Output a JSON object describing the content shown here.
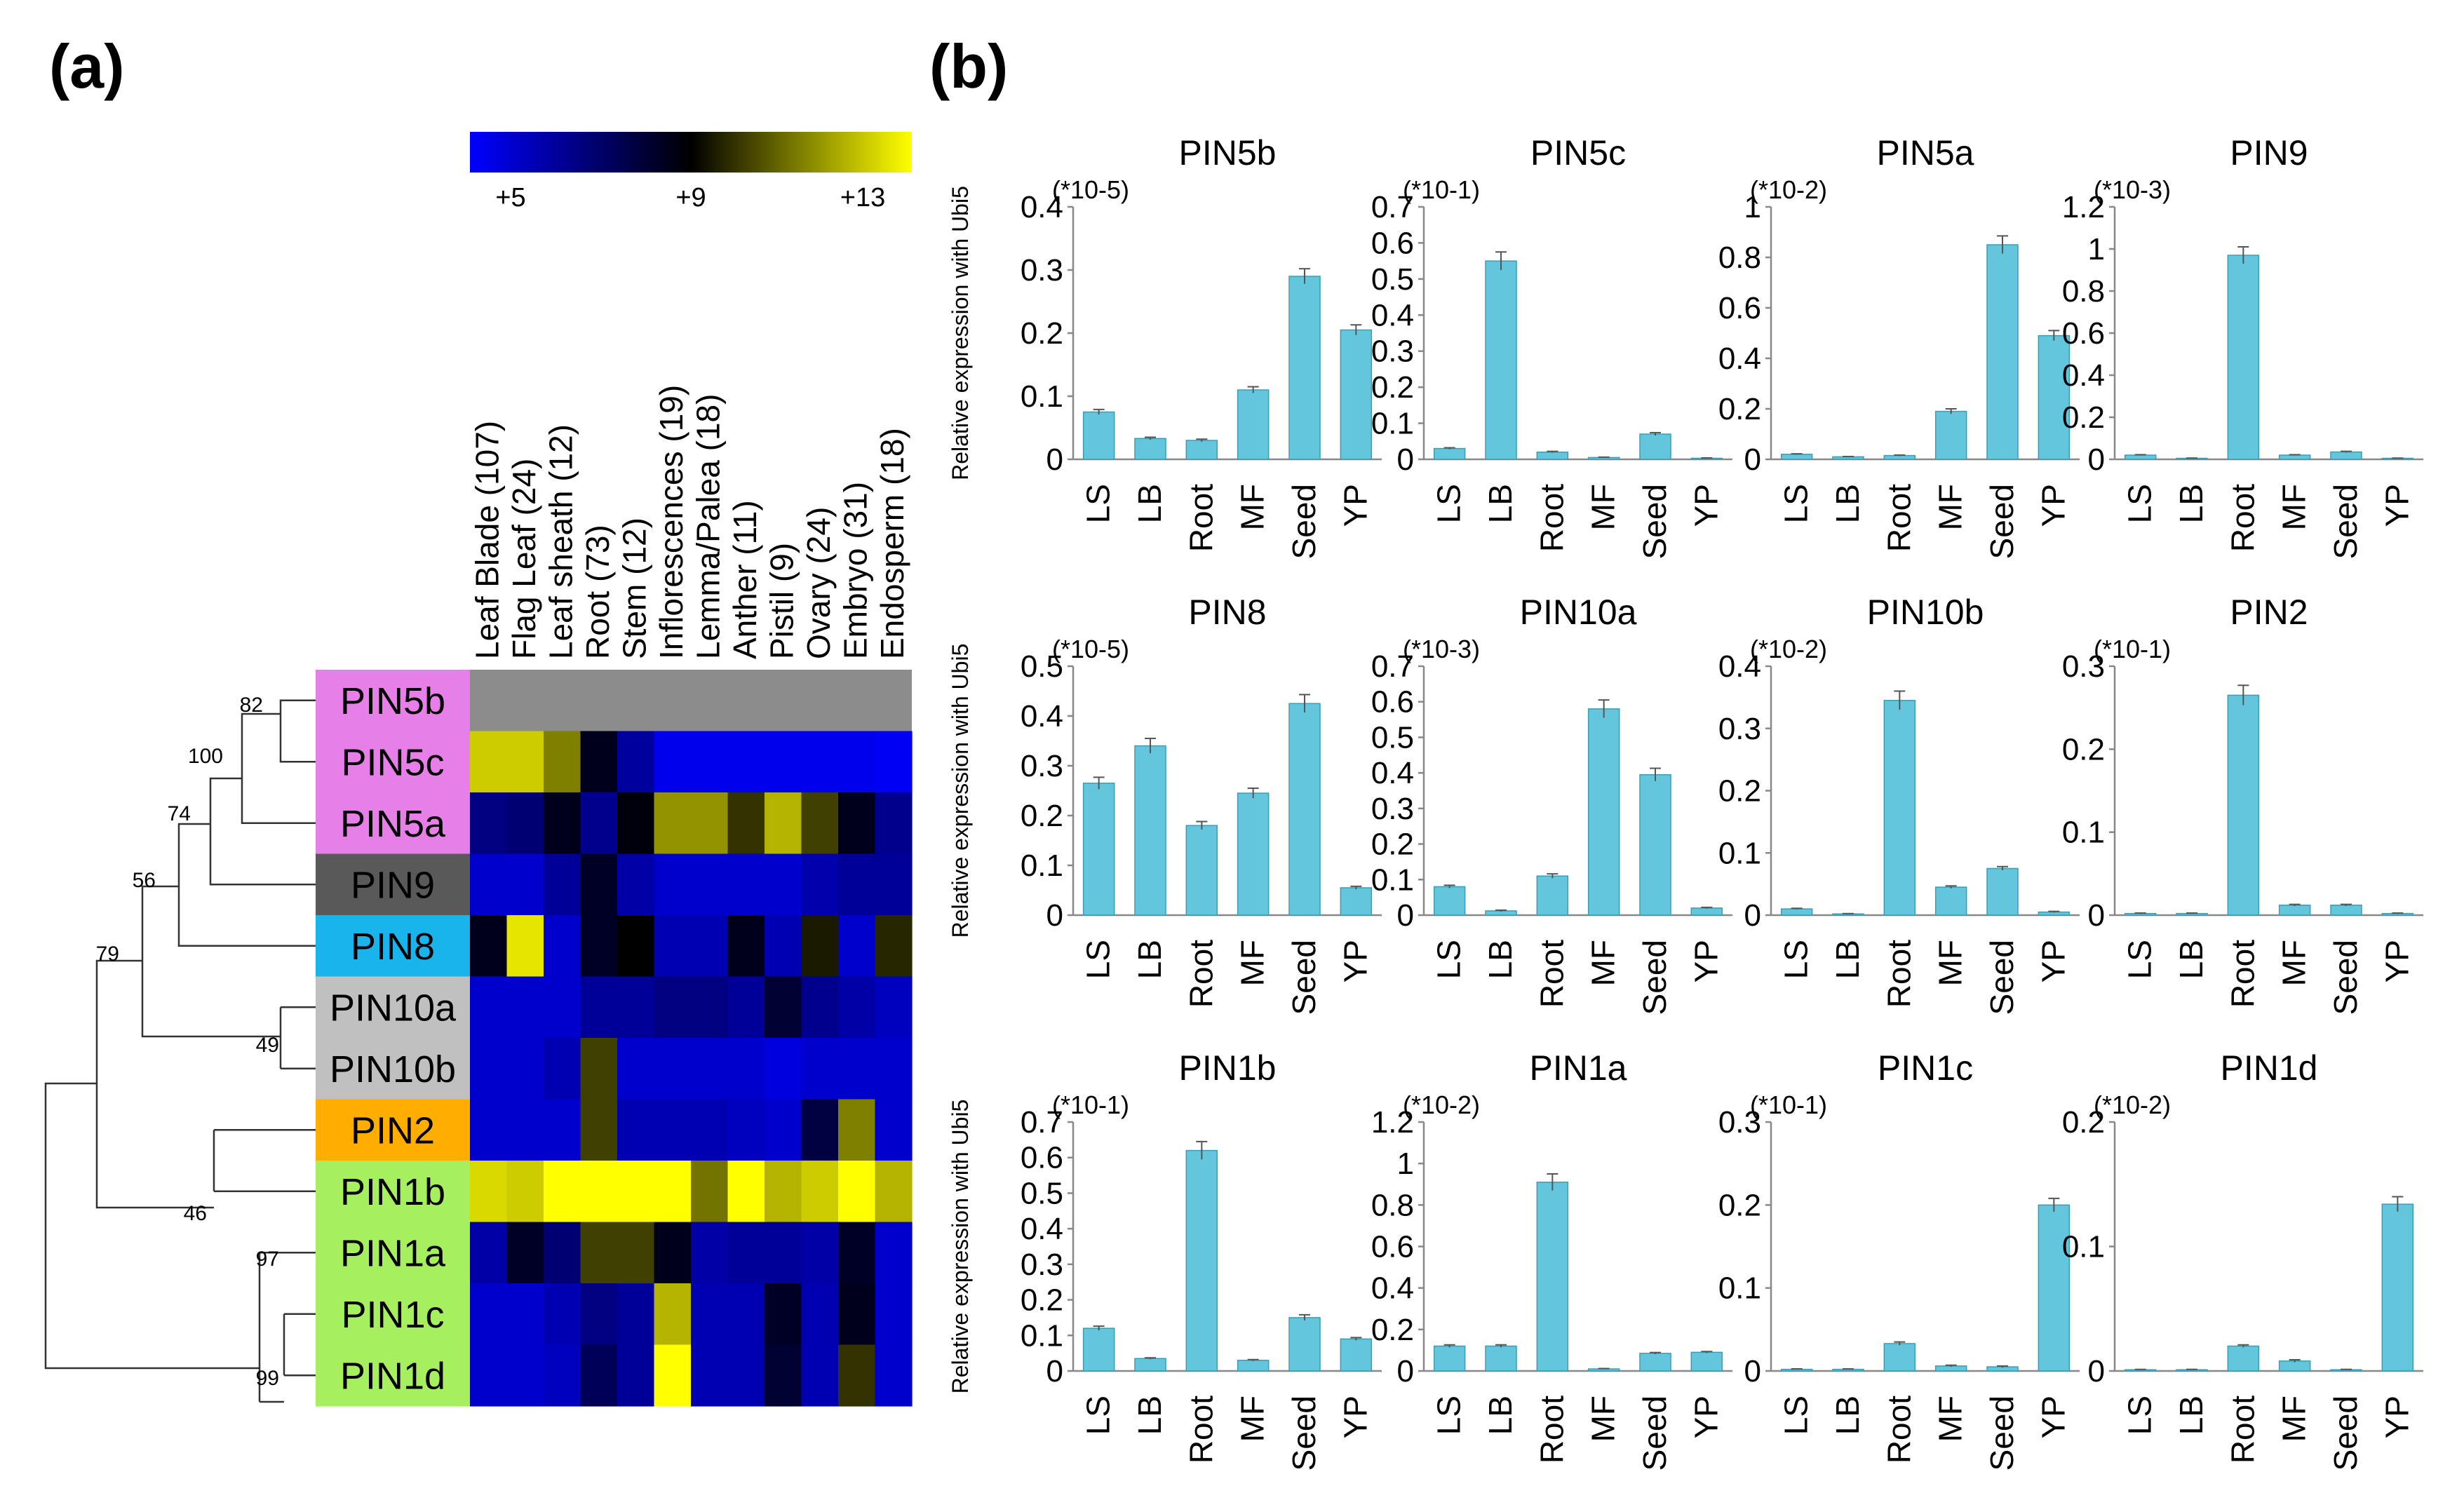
{
  "panel_a": {
    "label": "(a)",
    "colorbar": {
      "tick_labels": [
        "+5",
        "+9",
        "+13"
      ]
    }
  },
  "panel_b": {
    "label": "(b)",
    "ylabel": "Relative expression with Ubi5"
  },
  "chart_data": [
    {
      "type": "heatmap",
      "panel": "a",
      "title": "",
      "colorscale": {
        "min": 5,
        "mid": 9,
        "max": 13,
        "low_color": "#0000ff",
        "mid_color": "#000000",
        "high_color": "#ffff00",
        "missing_color": "#8c8c8c"
      },
      "columns": [
        "Leaf Blade (107)",
        "Flag Leaf (24)",
        "Leaf sheath (12)",
        "Root (73)",
        "Stem (12)",
        "Inflorescences (19)",
        "Lemma/Palea (18)",
        "Anther (11)",
        "Pistil (9)",
        "Ovary (24)",
        "Embryo (31)",
        "Endosperm (18)"
      ],
      "rows": [
        "PIN5b",
        "PIN5c",
        "PIN5a",
        "PIN9",
        "PIN8",
        "PIN10a",
        "PIN10b",
        "PIN2",
        "PIN1b",
        "PIN1a",
        "PIN1c",
        "PIN1d"
      ],
      "row_colors": [
        "#e77fe8",
        "#e77fe8",
        "#e77fe8",
        "#595959",
        "#1ab4ec",
        "#c0c0c0",
        "#c0c0c0",
        "#ffae00",
        "#a6f060",
        "#a6f060",
        "#a6f060",
        "#a6f060"
      ],
      "values": [
        [
          null,
          null,
          null,
          null,
          null,
          null,
          null,
          null,
          null,
          null,
          null,
          null
        ],
        [
          12.2,
          12.2,
          11.0,
          8.6,
          6.5,
          5.3,
          5.3,
          5.3,
          5.3,
          5.3,
          5.3,
          5.2
        ],
        [
          7.0,
          7.2,
          8.6,
          6.8,
          8.8,
          11.3,
          11.3,
          9.8,
          11.8,
          10.0,
          8.6,
          6.8
        ],
        [
          5.8,
          5.8,
          6.6,
          8.4,
          6.4,
          5.8,
          5.8,
          5.8,
          5.8,
          6.3,
          6.6,
          6.6
        ],
        [
          8.6,
          12.6,
          5.8,
          8.4,
          9.0,
          6.2,
          6.2,
          8.6,
          6.2,
          9.4,
          5.8,
          9.6
        ],
        [
          5.8,
          5.8,
          5.8,
          6.6,
          6.6,
          7.0,
          7.0,
          6.6,
          8.2,
          6.8,
          6.4,
          6.0
        ],
        [
          5.8,
          5.8,
          6.2,
          10.0,
          5.8,
          5.8,
          5.8,
          5.8,
          5.5,
          5.8,
          5.8,
          5.8
        ],
        [
          5.8,
          5.8,
          5.8,
          10.0,
          6.2,
          6.2,
          6.2,
          6.0,
          5.8,
          8.0,
          11.0,
          5.8
        ],
        [
          12.4,
          12.2,
          13.0,
          13.0,
          13.0,
          13.0,
          10.8,
          13.0,
          11.8,
          12.2,
          13.0,
          11.8
        ],
        [
          6.4,
          8.4,
          7.2,
          10.0,
          10.0,
          8.6,
          6.4,
          6.6,
          6.6,
          6.4,
          8.4,
          5.8
        ],
        [
          5.8,
          5.8,
          6.2,
          7.0,
          6.6,
          11.8,
          6.2,
          6.2,
          8.4,
          6.2,
          8.6,
          5.8
        ],
        [
          5.8,
          5.8,
          6.0,
          7.6,
          6.6,
          13.0,
          6.2,
          6.2,
          8.2,
          6.2,
          9.8,
          5.8
        ]
      ],
      "dendrogram_bootstrap": [
        "82",
        "100",
        "74",
        "56",
        "79",
        "49",
        "46",
        "97",
        "99"
      ]
    },
    {
      "type": "bar",
      "panel": "b",
      "title": "PIN5b",
      "multiplier": "(*10-5)",
      "categories": [
        "LS",
        "LB",
        "Root",
        "MF",
        "Seed",
        "YP"
      ],
      "values": [
        0.075,
        0.033,
        0.03,
        0.11,
        0.29,
        0.205
      ],
      "errors": [
        0.004,
        0.002,
        0.002,
        0.005,
        0.012,
        0.008
      ],
      "ylim": [
        0,
        0.4
      ],
      "yticks": [
        "0",
        "0.1",
        "0.2",
        "0.3",
        "0.4"
      ]
    },
    {
      "type": "bar",
      "panel": "b",
      "title": "PIN5c",
      "multiplier": "(*10-1)",
      "categories": [
        "LS",
        "LB",
        "Root",
        "MF",
        "Seed",
        "YP"
      ],
      "values": [
        0.03,
        0.55,
        0.02,
        0.005,
        0.07,
        0.003
      ],
      "errors": [
        0.002,
        0.025,
        0.002,
        0.001,
        0.004,
        0.001
      ],
      "ylim": [
        0,
        0.7
      ],
      "yticks": [
        "0",
        "0.1",
        "0.2",
        "0.3",
        "0.4",
        "0.5",
        "0.6",
        "0.7"
      ]
    },
    {
      "type": "bar",
      "panel": "b",
      "title": "PIN5a",
      "multiplier": "(*10-2)",
      "categories": [
        "LS",
        "LB",
        "Root",
        "MF",
        "Seed",
        "YP"
      ],
      "values": [
        0.02,
        0.01,
        0.015,
        0.19,
        0.85,
        0.49
      ],
      "errors": [
        0.002,
        0.001,
        0.002,
        0.01,
        0.035,
        0.02
      ],
      "ylim": [
        0,
        1
      ],
      "yticks": [
        "0",
        "0.2",
        "0.4",
        "0.6",
        "0.8",
        "1"
      ]
    },
    {
      "type": "bar",
      "panel": "b",
      "title": "PIN9",
      "multiplier": "(*10-3)",
      "categories": [
        "LS",
        "LB",
        "Root",
        "MF",
        "Seed",
        "YP"
      ],
      "values": [
        0.02,
        0.005,
        0.97,
        0.02,
        0.035,
        0.005
      ],
      "errors": [
        0.002,
        0.001,
        0.04,
        0.002,
        0.003,
        0.001
      ],
      "ylim": [
        0,
        1.2
      ],
      "yticks": [
        "0",
        "0.2",
        "0.4",
        "0.6",
        "0.8",
        "1",
        "1.2"
      ]
    },
    {
      "type": "bar",
      "panel": "b",
      "title": "PIN8",
      "multiplier": "(*10-5)",
      "categories": [
        "LS",
        "LB",
        "Root",
        "MF",
        "Seed",
        "YP"
      ],
      "values": [
        0.265,
        0.34,
        0.18,
        0.245,
        0.425,
        0.055
      ],
      "errors": [
        0.012,
        0.015,
        0.008,
        0.01,
        0.018,
        0.003
      ],
      "ylim": [
        0,
        0.5
      ],
      "yticks": [
        "0",
        "0.1",
        "0.2",
        "0.3",
        "0.4",
        "0.5"
      ]
    },
    {
      "type": "bar",
      "panel": "b",
      "title": "PIN10a",
      "multiplier": "(*10-3)",
      "categories": [
        "LS",
        "LB",
        "Root",
        "MF",
        "Seed",
        "YP"
      ],
      "values": [
        0.08,
        0.012,
        0.11,
        0.58,
        0.395,
        0.02
      ],
      "errors": [
        0.004,
        0.002,
        0.006,
        0.025,
        0.018,
        0.002
      ],
      "ylim": [
        0,
        0.7
      ],
      "yticks": [
        "0",
        "0.1",
        "0.2",
        "0.3",
        "0.4",
        "0.5",
        "0.6",
        "0.7"
      ]
    },
    {
      "type": "bar",
      "panel": "b",
      "title": "PIN10b",
      "multiplier": "(*10-2)",
      "categories": [
        "LS",
        "LB",
        "Root",
        "MF",
        "Seed",
        "YP"
      ],
      "values": [
        0.01,
        0.002,
        0.345,
        0.045,
        0.075,
        0.005
      ],
      "errors": [
        0.001,
        0.0005,
        0.015,
        0.002,
        0.003,
        0.001
      ],
      "ylim": [
        0,
        0.4
      ],
      "yticks": [
        "0",
        "0.1",
        "0.2",
        "0.3",
        "0.4"
      ]
    },
    {
      "type": "bar",
      "panel": "b",
      "title": "PIN2",
      "multiplier": "(*10-1)",
      "categories": [
        "LS",
        "LB",
        "Root",
        "MF",
        "Seed",
        "YP"
      ],
      "values": [
        0.002,
        0.002,
        0.265,
        0.012,
        0.012,
        0.002
      ],
      "errors": [
        0.0005,
        0.0005,
        0.012,
        0.001,
        0.001,
        0.0005
      ],
      "ylim": [
        0,
        0.3
      ],
      "yticks": [
        "0",
        "0.1",
        "0.2",
        "0.3"
      ]
    },
    {
      "type": "bar",
      "panel": "b",
      "title": "PIN1b",
      "multiplier": "(*10-1)",
      "categories": [
        "LS",
        "LB",
        "Root",
        "MF",
        "Seed",
        "YP"
      ],
      "values": [
        0.12,
        0.035,
        0.62,
        0.03,
        0.15,
        0.09
      ],
      "errors": [
        0.006,
        0.002,
        0.025,
        0.002,
        0.008,
        0.004
      ],
      "ylim": [
        0,
        0.7
      ],
      "yticks": [
        "0",
        "0.1",
        "0.2",
        "0.3",
        "0.4",
        "0.5",
        "0.6",
        "0.7"
      ]
    },
    {
      "type": "bar",
      "panel": "b",
      "title": "PIN1a",
      "multiplier": "(*10-2)",
      "categories": [
        "LS",
        "LB",
        "Root",
        "MF",
        "Seed",
        "YP"
      ],
      "values": [
        0.12,
        0.12,
        0.91,
        0.01,
        0.085,
        0.09
      ],
      "errors": [
        0.006,
        0.006,
        0.04,
        0.002,
        0.004,
        0.004
      ],
      "ylim": [
        0,
        1.2
      ],
      "yticks": [
        "0",
        "0.2",
        "0.4",
        "0.6",
        "0.8",
        "1",
        "1.2"
      ]
    },
    {
      "type": "bar",
      "panel": "b",
      "title": "PIN1c",
      "multiplier": "(*10-1)",
      "categories": [
        "LS",
        "LB",
        "Root",
        "MF",
        "Seed",
        "YP"
      ],
      "values": [
        0.002,
        0.002,
        0.033,
        0.006,
        0.005,
        0.2
      ],
      "errors": [
        0.0005,
        0.0005,
        0.002,
        0.001,
        0.001,
        0.008
      ],
      "ylim": [
        0,
        0.3
      ],
      "yticks": [
        "0",
        "0.1",
        "0.2",
        "0.3"
      ]
    },
    {
      "type": "bar",
      "panel": "b",
      "title": "PIN1d",
      "multiplier": "(*10-2)",
      "categories": [
        "LS",
        "LB",
        "Root",
        "MF",
        "Seed",
        "YP"
      ],
      "values": [
        0.001,
        0.001,
        0.02,
        0.008,
        0.001,
        0.134
      ],
      "errors": [
        0.0003,
        0.0003,
        0.001,
        0.001,
        0.0003,
        0.006
      ],
      "ylim": [
        0,
        0.2
      ],
      "yticks": [
        "0",
        "0.1",
        "0.2"
      ]
    }
  ]
}
